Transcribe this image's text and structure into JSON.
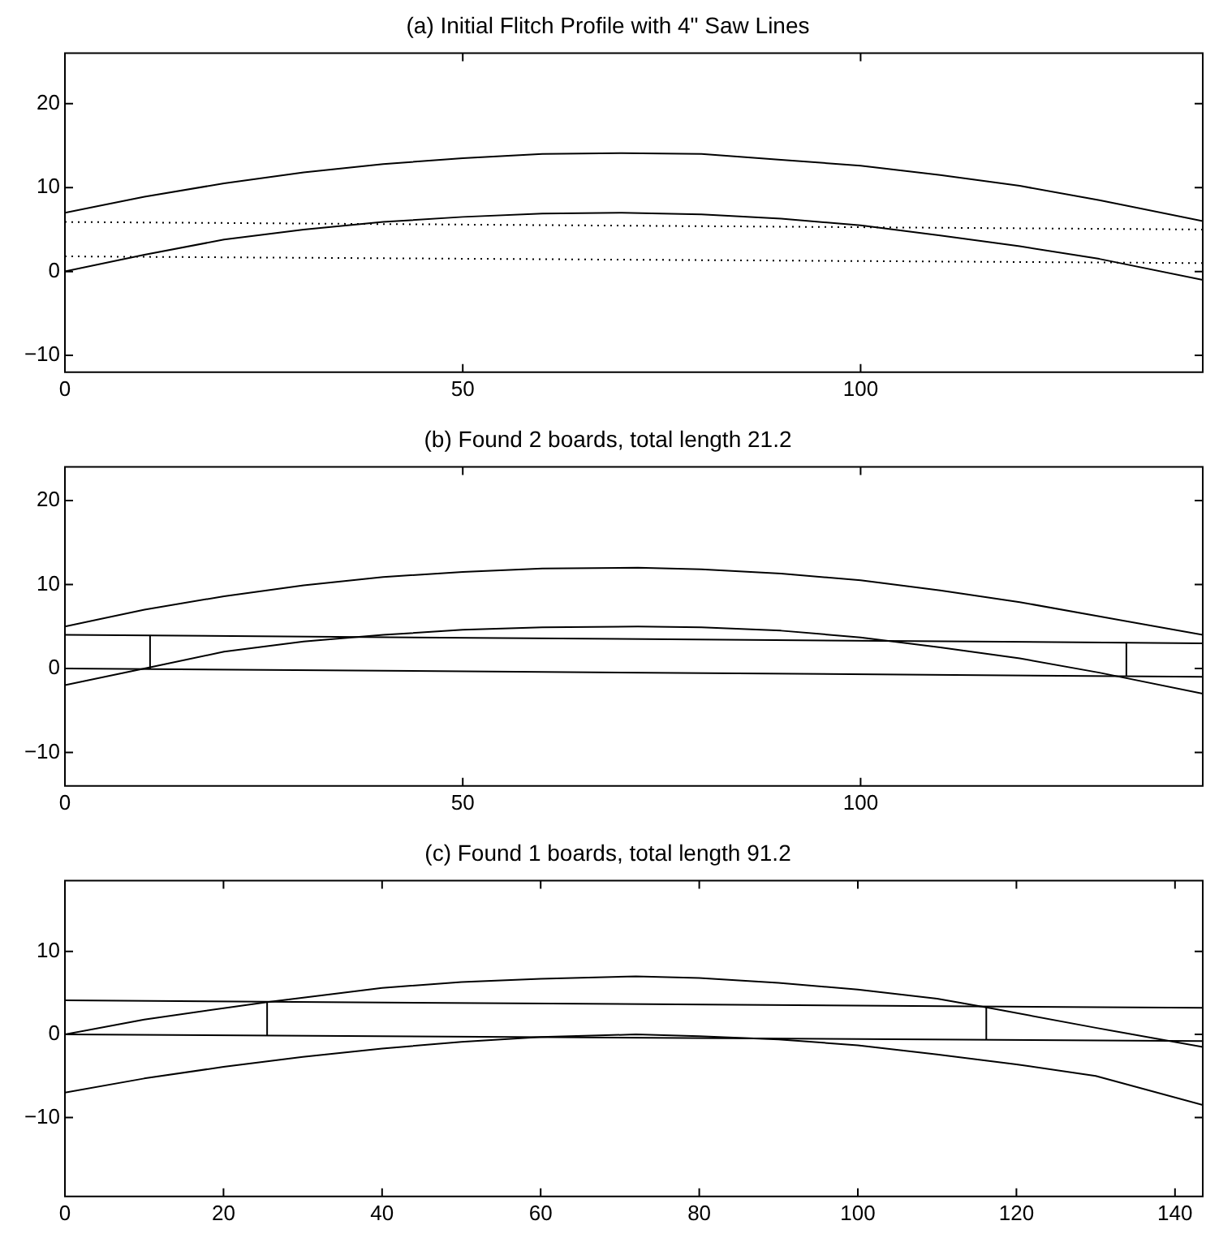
{
  "chart_data": [
    {
      "type": "line",
      "title": "(a) Initial Flitch Profile with 4\" Saw Lines",
      "xlim": [
        0,
        143
      ],
      "xticks": [
        0,
        50,
        100
      ],
      "ylim": [
        -12,
        26
      ],
      "yticks": [
        -10,
        0,
        10,
        20
      ],
      "grid": false,
      "legend": false,
      "marker": "none",
      "series": [
        {
          "type": "line",
          "color": "#000000",
          "line_style": "solid",
          "x": [
            0,
            10,
            20,
            30,
            40,
            50,
            60,
            70,
            80,
            90,
            100,
            110,
            120,
            130,
            143
          ],
          "values": [
            7,
            8.9,
            10.5,
            11.8,
            12.8,
            13.5,
            14,
            14.1,
            14,
            13.3,
            12.6,
            11.5,
            10.2,
            8.5,
            6
          ]
        },
        {
          "type": "line",
          "color": "#000000",
          "line_style": "solid",
          "x": [
            0,
            10,
            20,
            30,
            40,
            50,
            60,
            70,
            80,
            90,
            100,
            110,
            120,
            130,
            143
          ],
          "values": [
            0,
            2,
            3.8,
            5,
            5.9,
            6.5,
            6.9,
            7,
            6.8,
            6.3,
            5.5,
            4.3,
            3,
            1.5,
            -1
          ]
        },
        {
          "type": "line",
          "color": "#000000",
          "line_style": "dotted",
          "x": [
            0,
            143
          ],
          "values": [
            5.9,
            5
          ]
        },
        {
          "type": "line",
          "color": "#000000",
          "line_style": "dotted",
          "x": [
            0,
            143
          ],
          "values": [
            1.8,
            1
          ]
        }
      ]
    },
    {
      "type": "line",
      "title": "(b) Found 2 boards, total length 21.2",
      "xlim": [
        0,
        143
      ],
      "xticks": [
        0,
        50,
        100
      ],
      "ylim": [
        -14,
        24
      ],
      "yticks": [
        -10,
        0,
        10,
        20
      ],
      "grid": false,
      "legend": false,
      "marker": "none",
      "series": [
        {
          "type": "line",
          "color": "#000000",
          "line_style": "solid",
          "x": [
            0,
            10,
            20,
            30,
            40,
            50,
            60,
            72,
            80,
            90,
            100,
            110,
            120,
            130,
            143
          ],
          "values": [
            5,
            7,
            8.6,
            9.9,
            10.9,
            11.5,
            11.9,
            12,
            11.8,
            11.3,
            10.5,
            9.3,
            7.9,
            6.2,
            4
          ]
        },
        {
          "type": "line",
          "color": "#000000",
          "line_style": "solid",
          "x": [
            0,
            10,
            20,
            30,
            40,
            50,
            60,
            72,
            80,
            90,
            100,
            110,
            120,
            130,
            143
          ],
          "values": [
            -2,
            0,
            2,
            3.2,
            4,
            4.6,
            4.9,
            5,
            4.9,
            4.5,
            3.7,
            2.5,
            1.2,
            -0.5,
            -3
          ]
        },
        {
          "type": "line",
          "color": "#000000",
          "line_style": "solid",
          "x": [
            0,
            143
          ],
          "values": [
            4,
            3
          ]
        },
        {
          "type": "line",
          "color": "#000000",
          "line_style": "solid",
          "x": [
            0,
            143
          ],
          "values": [
            0,
            -1
          ]
        },
        {
          "type": "line",
          "color": "#000000",
          "line_style": "solid",
          "x": [
            10.7,
            10.7
          ],
          "values": [
            -0.1,
            3.9
          ]
        },
        {
          "type": "line",
          "color": "#000000",
          "line_style": "solid",
          "x": [
            133.4,
            133.4
          ],
          "values": [
            -0.9,
            3.1
          ]
        }
      ]
    },
    {
      "type": "line",
      "title": "(c) Found 1 boards, total length 91.2",
      "xlim": [
        0,
        143.5
      ],
      "xticks": [
        0,
        20,
        40,
        60,
        80,
        100,
        120,
        140
      ],
      "ylim": [
        -19.5,
        18.5
      ],
      "yticks": [
        -10,
        0,
        10
      ],
      "grid": false,
      "legend": false,
      "marker": "none",
      "series": [
        {
          "type": "line",
          "color": "#000000",
          "line_style": "solid",
          "x": [
            0,
            10,
            25.5,
            40,
            50,
            60,
            72,
            80,
            90,
            100,
            110,
            116.5,
            130,
            143.5
          ],
          "values": [
            0,
            1.8,
            3.9,
            5.6,
            6.3,
            6.7,
            7,
            6.8,
            6.2,
            5.4,
            4.3,
            3.2,
            0.8,
            -1.5
          ]
        },
        {
          "type": "line",
          "color": "#000000",
          "line_style": "solid",
          "x": [
            0,
            10,
            20,
            30,
            40,
            50,
            60,
            72,
            80,
            90,
            100,
            110,
            120,
            130,
            143.5
          ],
          "values": [
            -7,
            -5.3,
            -3.9,
            -2.7,
            -1.7,
            -0.9,
            -0.3,
            0,
            -0.2,
            -0.6,
            -1.3,
            -2.4,
            -3.6,
            -5,
            -8.5
          ]
        },
        {
          "type": "line",
          "color": "#000000",
          "line_style": "solid",
          "x": [
            0,
            143.5
          ],
          "values": [
            4.1,
            3.2
          ]
        },
        {
          "type": "line",
          "color": "#000000",
          "line_style": "solid",
          "x": [
            0,
            143.5
          ],
          "values": [
            0,
            -0.8
          ]
        },
        {
          "type": "line",
          "color": "#000000",
          "line_style": "solid",
          "x": [
            25.5,
            25.5
          ],
          "values": [
            -0.1,
            3.9
          ]
        },
        {
          "type": "line",
          "color": "#000000",
          "line_style": "solid",
          "x": [
            116.2,
            116.2
          ],
          "values": [
            -0.6,
            3.3
          ]
        }
      ]
    }
  ]
}
